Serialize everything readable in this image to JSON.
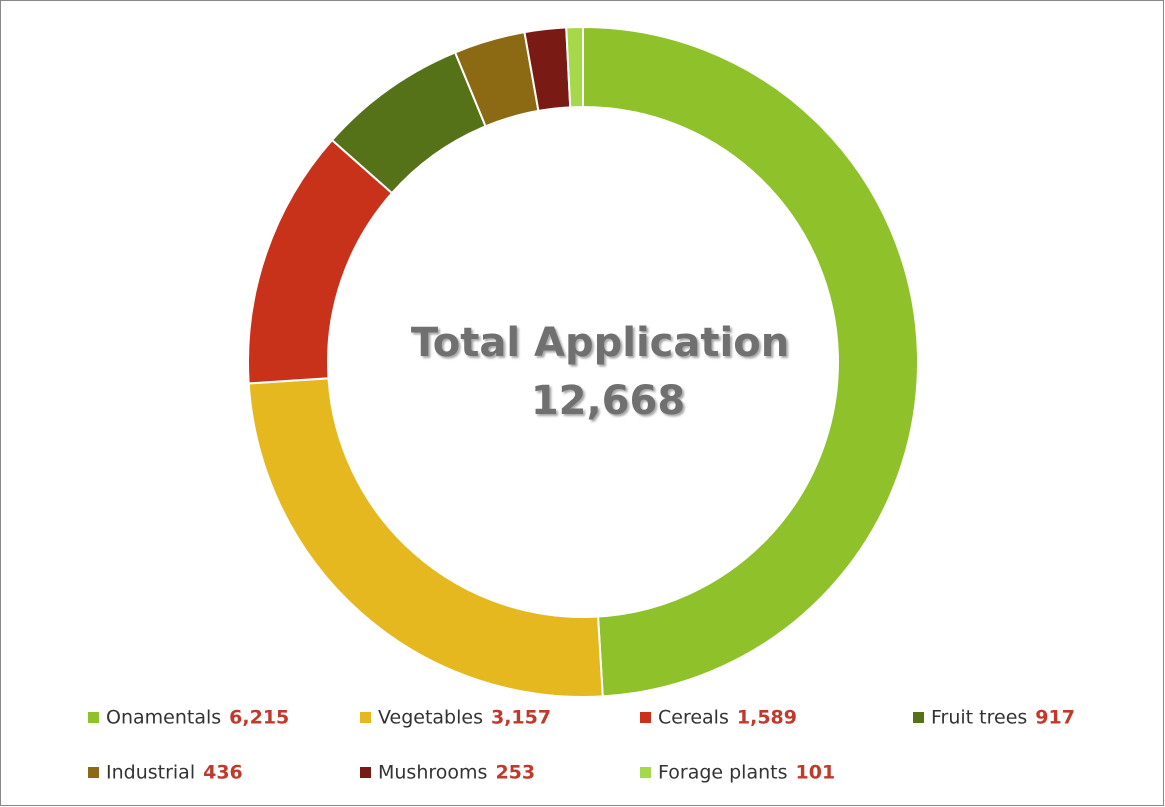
{
  "chart_data": {
    "type": "donut",
    "center_title": "Total Application",
    "center_total_label": "12,668",
    "categories": [
      "Onamentals",
      "Vegetables",
      "Cereals",
      "Fruit trees",
      "Industrial",
      "Mushrooms",
      "Forage plants"
    ],
    "values": [
      6215,
      3157,
      1589,
      917,
      436,
      253,
      101
    ],
    "value_labels": [
      "6,215",
      "3,157",
      "1,589",
      "917",
      "436",
      "253",
      "101"
    ],
    "colors": [
      "#8fc12a",
      "#e6b820",
      "#c8321a",
      "#557218",
      "#8c6a14",
      "#7a1a14",
      "#a6d94a"
    ],
    "legend": "bottom"
  }
}
